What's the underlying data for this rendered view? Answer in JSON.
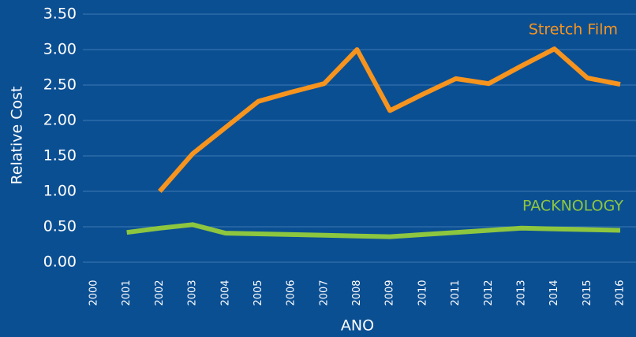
{
  "chart_data": {
    "type": "line",
    "y_label": "Relative Cost",
    "x_label": "ANO",
    "categories": [
      "2000",
      "2001",
      "2002",
      "2003",
      "2004",
      "2005",
      "2006",
      "2007",
      "2008",
      "2009",
      "2010",
      "2011",
      "2012",
      "2013",
      "2014",
      "2015",
      "2016"
    ],
    "series": [
      {
        "name": "Stretch Film",
        "color": "#f7941d",
        "values": [
          null,
          null,
          1.0,
          1.53,
          1.9,
          2.27,
          2.4,
          2.52,
          3.0,
          2.14,
          2.37,
          2.59,
          2.52,
          2.77,
          3.01,
          2.6,
          2.51
        ]
      },
      {
        "name": "PACKNOLOGY",
        "color": "#8dc63f",
        "values": [
          null,
          0.42,
          0.48,
          0.53,
          0.41,
          0.4,
          0.39,
          0.38,
          0.37,
          0.36,
          0.39,
          0.42,
          0.45,
          0.48,
          0.47,
          0.46,
          0.45
        ]
      }
    ],
    "ylim": [
      0,
      3.5
    ],
    "yticks": [
      {
        "value": 0,
        "label": "0.00"
      },
      {
        "value": 0.5,
        "label": "0.50"
      },
      {
        "value": 1,
        "label": "1.00"
      },
      {
        "value": 1.5,
        "label": "1.50"
      },
      {
        "value": 2,
        "label": "2.00"
      },
      {
        "value": 2.5,
        "label": "2.50"
      },
      {
        "value": 3,
        "label": "3.00"
      },
      {
        "value": 3.5,
        "label": "3.50"
      }
    ],
    "grid": true
  }
}
